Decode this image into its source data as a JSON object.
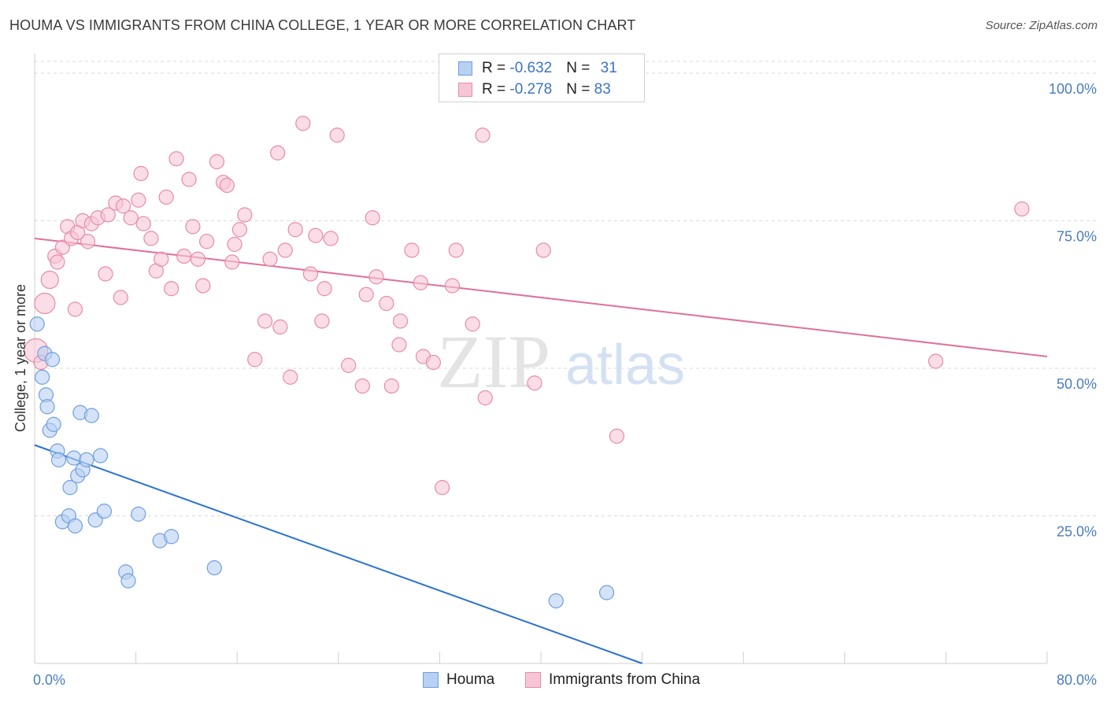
{
  "title": "HOUMA VS IMMIGRANTS FROM CHINA COLLEGE, 1 YEAR OR MORE CORRELATION CHART",
  "source": "Source: ZipAtlas.com",
  "watermark": {
    "zip": "ZIP",
    "atlas": "atlas"
  },
  "legend": {
    "houma": {
      "r_label": "R = ",
      "r_value": "-0.632",
      "n_label": "N = ",
      "n_value": "31"
    },
    "china": {
      "r_label": "R = ",
      "r_value": "-0.278",
      "n_label": "N = ",
      "n_value": "83"
    }
  },
  "bottom_legend": {
    "houma": "Houma",
    "china": "Immigrants from China"
  },
  "colors": {
    "houma_fill": "#b8d0f2",
    "houma_stroke": "#6f9ee0",
    "houma_line": "#2a72d0",
    "china_fill": "#f7c6d6",
    "china_stroke": "#e88aa8",
    "china_line": "#e0709a",
    "tick_text": "#4a7cc0",
    "grid": "#d8d8d8"
  },
  "chart_data": {
    "type": "scatter",
    "title": "HOUMA VS IMMIGRANTS FROM CHINA COLLEGE, 1 YEAR OR MORE CORRELATION CHART",
    "xlabel": "",
    "ylabel": "College, 1 year or more",
    "xlim": [
      0,
      80
    ],
    "ylim": [
      0,
      102
    ],
    "x_tick_labels": [
      "0.0%",
      "80.0%"
    ],
    "y_ticks": [
      25,
      50,
      75,
      100
    ],
    "y_tick_labels": [
      "25.0%",
      "50.0%",
      "75.0%",
      "100.0%"
    ],
    "grid": true,
    "series": [
      {
        "name": "Houma",
        "r": -0.632,
        "n": 31,
        "trend": {
          "x": [
            0,
            48
          ],
          "y": [
            37,
            0
          ]
        },
        "points": [
          [
            0.2,
            57.5
          ],
          [
            0.6,
            48.5
          ],
          [
            0.8,
            52.5
          ],
          [
            1.4,
            51.5
          ],
          [
            0.9,
            45.5
          ],
          [
            1.0,
            43.5
          ],
          [
            1.2,
            39.5
          ],
          [
            1.5,
            40.5
          ],
          [
            1.8,
            36.0
          ],
          [
            1.9,
            34.5
          ],
          [
            2.2,
            24.0
          ],
          [
            2.7,
            25.0
          ],
          [
            2.8,
            29.8
          ],
          [
            3.1,
            34.8
          ],
          [
            3.2,
            23.3
          ],
          [
            3.4,
            31.8
          ],
          [
            3.6,
            42.5
          ],
          [
            3.8,
            32.8
          ],
          [
            4.1,
            34.5
          ],
          [
            4.5,
            42.0
          ],
          [
            4.8,
            24.3
          ],
          [
            5.2,
            35.2
          ],
          [
            5.5,
            25.8
          ],
          [
            7.2,
            15.5
          ],
          [
            7.4,
            14.0
          ],
          [
            8.2,
            25.3
          ],
          [
            9.9,
            20.8
          ],
          [
            10.8,
            21.5
          ],
          [
            14.2,
            16.2
          ],
          [
            41.2,
            10.6
          ],
          [
            45.2,
            12.0
          ]
        ]
      },
      {
        "name": "Immigrants from China",
        "r": -0.278,
        "n": 83,
        "trend": {
          "x": [
            0,
            80
          ],
          "y": [
            72,
            52
          ]
        },
        "points": [
          [
            0.1,
            53.0
          ],
          [
            0.8,
            61.0
          ],
          [
            1.2,
            65.0
          ],
          [
            1.6,
            69.0
          ],
          [
            2.2,
            70.5
          ],
          [
            2.6,
            74.0
          ],
          [
            2.9,
            72.0
          ],
          [
            3.4,
            73.0
          ],
          [
            3.8,
            75.0
          ],
          [
            4.2,
            71.5
          ],
          [
            4.5,
            74.5
          ],
          [
            5.0,
            75.5
          ],
          [
            5.6,
            66.0
          ],
          [
            5.8,
            76.0
          ],
          [
            6.4,
            78.0
          ],
          [
            7.0,
            77.5
          ],
          [
            7.6,
            75.5
          ],
          [
            8.2,
            78.5
          ],
          [
            8.6,
            74.5
          ],
          [
            8.4,
            83.0
          ],
          [
            9.6,
            66.5
          ],
          [
            10.0,
            68.5
          ],
          [
            10.4,
            79.0
          ],
          [
            10.8,
            63.5
          ],
          [
            11.2,
            85.5
          ],
          [
            11.8,
            69.0
          ],
          [
            12.2,
            82.0
          ],
          [
            12.5,
            74.0
          ],
          [
            12.9,
            68.5
          ],
          [
            13.3,
            64.0
          ],
          [
            13.6,
            71.5
          ],
          [
            14.4,
            85.0
          ],
          [
            14.9,
            81.5
          ],
          [
            15.2,
            81.0
          ],
          [
            15.6,
            68.0
          ],
          [
            15.8,
            71.0
          ],
          [
            16.2,
            73.5
          ],
          [
            16.6,
            76.0
          ],
          [
            17.4,
            51.5
          ],
          [
            18.2,
            58.0
          ],
          [
            18.6,
            68.5
          ],
          [
            19.2,
            86.5
          ],
          [
            19.4,
            57.0
          ],
          [
            19.8,
            70.0
          ],
          [
            20.2,
            48.5
          ],
          [
            20.6,
            73.5
          ],
          [
            21.2,
            91.5
          ],
          [
            21.8,
            66.0
          ],
          [
            22.2,
            72.5
          ],
          [
            22.7,
            58.0
          ],
          [
            22.9,
            63.5
          ],
          [
            23.4,
            72.0
          ],
          [
            23.9,
            89.5
          ],
          [
            24.8,
            50.5
          ],
          [
            25.9,
            47.0
          ],
          [
            26.2,
            62.5
          ],
          [
            26.7,
            75.5
          ],
          [
            27.0,
            65.5
          ],
          [
            27.8,
            61.0
          ],
          [
            28.2,
            47.0
          ],
          [
            28.8,
            54.0
          ],
          [
            28.9,
            58.0
          ],
          [
            29.8,
            70.0
          ],
          [
            30.5,
            64.5
          ],
          [
            30.7,
            52.0
          ],
          [
            31.5,
            51.0
          ],
          [
            32.2,
            29.8
          ],
          [
            33.0,
            64.0
          ],
          [
            33.3,
            70.0
          ],
          [
            34.6,
            57.5
          ],
          [
            35.4,
            89.5
          ],
          [
            35.6,
            45.0
          ],
          [
            35.8,
            97.0
          ],
          [
            39.5,
            47.5
          ],
          [
            40.2,
            70.0
          ],
          [
            46.0,
            38.5
          ],
          [
            71.2,
            51.2
          ],
          [
            78.0,
            77.0
          ],
          [
            0.5,
            51.0
          ],
          [
            1.8,
            68.0
          ],
          [
            6.8,
            62.0
          ],
          [
            9.2,
            72.0
          ],
          [
            3.2,
            60.0
          ]
        ]
      }
    ]
  }
}
